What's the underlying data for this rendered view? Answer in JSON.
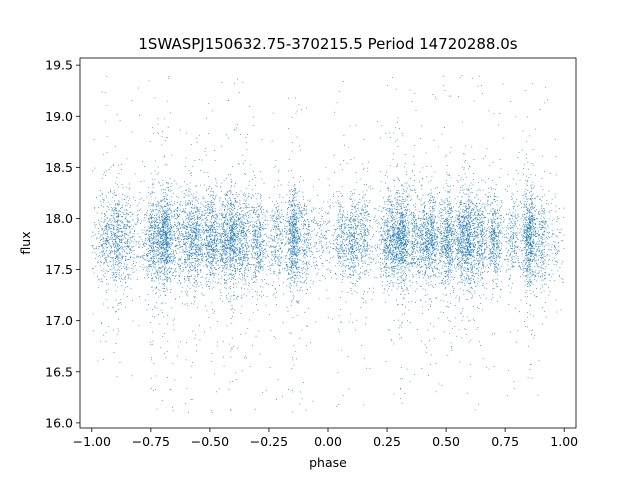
{
  "chart_data": {
    "type": "scatter",
    "title": "1SWASPJ150632.75-370215.5 Period 14720288.0s",
    "xlabel": "phase",
    "ylabel": "flux",
    "xlim": [
      -1.05,
      1.05
    ],
    "ylim": [
      15.95,
      19.57
    ],
    "x_ticks": [
      -1.0,
      -0.75,
      -0.5,
      -0.25,
      0.0,
      0.25,
      0.5,
      0.75,
      1.0
    ],
    "x_tick_labels": [
      "−1.00",
      "−0.75",
      "−0.50",
      "−0.25",
      "0.00",
      "0.25",
      "0.50",
      "0.75",
      "1.00"
    ],
    "y_ticks": [
      16.0,
      16.5,
      17.0,
      17.5,
      18.0,
      18.5,
      19.0,
      19.5
    ],
    "y_tick_labels": [
      "16.0",
      "16.5",
      "17.0",
      "17.5",
      "18.0",
      "18.5",
      "19.0",
      "19.5"
    ],
    "grid": false,
    "legend": "none",
    "point_color": "#1f77b4",
    "point_count": 13000,
    "phase_range": [
      -1.0,
      1.0
    ],
    "flux_center": 17.8,
    "flux_core_spread": 0.22,
    "flux_min": 16.1,
    "flux_max": 19.4,
    "note_dense_band": [
      17.4,
      18.2
    ]
  }
}
